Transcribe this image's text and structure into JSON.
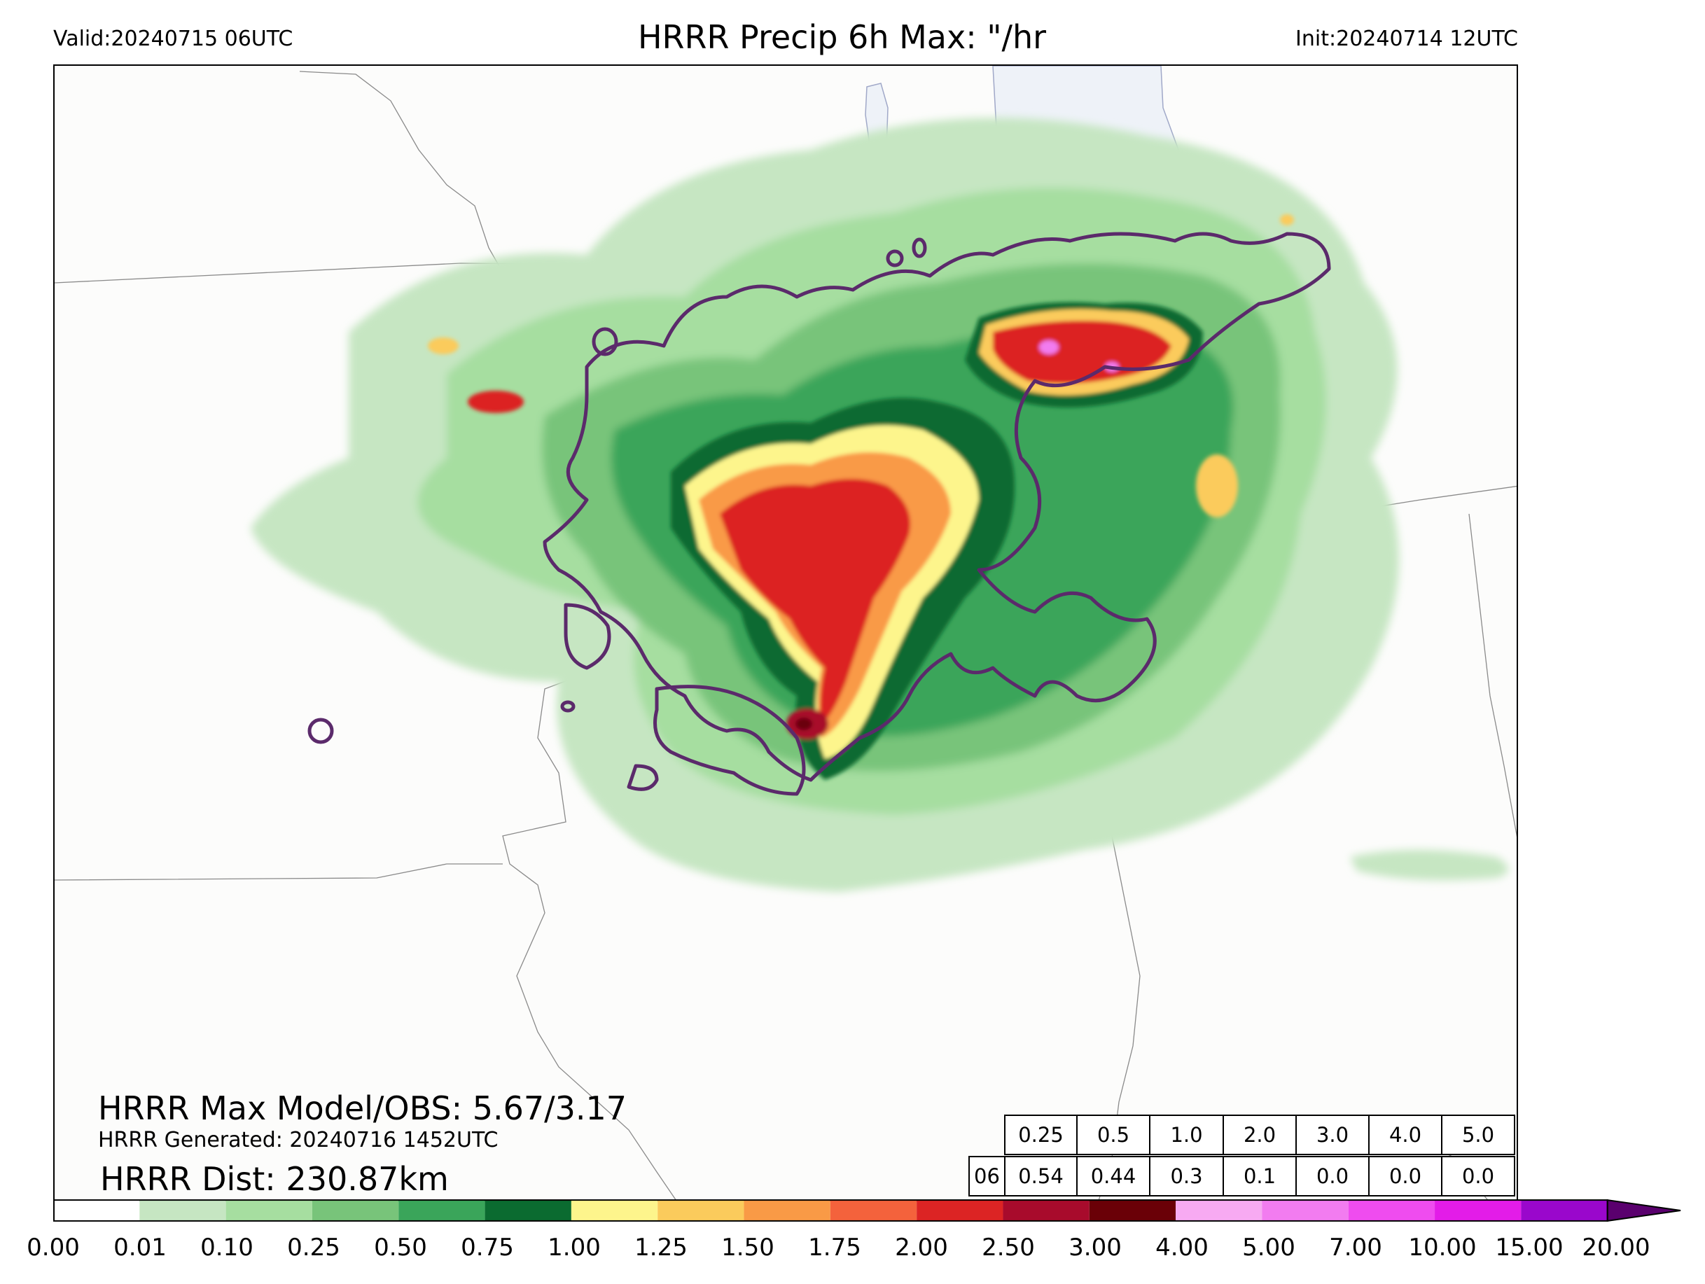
{
  "header": {
    "valid": "Valid:20240715 06UTC",
    "title": "HRRR Precip 6h Max: \"/hr",
    "init": "Init:20240714 12UTC"
  },
  "annotations": {
    "max_model_obs": "HRRR Max Model/OBS: 5.67/3.17",
    "generated": "HRRR Generated: 20240716 1452UTC",
    "distance": "HRRR Dist: 230.87km"
  },
  "stats_table": {
    "thresholds": [
      "0.25",
      "0.5",
      "1.0",
      "2.0",
      "3.0",
      "4.0",
      "5.0"
    ],
    "row_label": "06",
    "values": [
      "0.54",
      "0.44",
      "0.3",
      "0.1",
      "0.0",
      "0.0",
      "0.0"
    ]
  },
  "colorbar": {
    "ticks": [
      "0.00",
      "0.01",
      "0.10",
      "0.25",
      "0.50",
      "0.75",
      "1.00",
      "1.25",
      "1.50",
      "1.75",
      "2.00",
      "2.50",
      "3.00",
      "4.00",
      "5.00",
      "7.00",
      "10.00",
      "15.00",
      "20.00"
    ],
    "colors": [
      "#ffffff",
      "#c6e6c2",
      "#a6dea0",
      "#78c47a",
      "#3aa55a",
      "#0b6b30",
      "#fdf58c",
      "#fbcb5c",
      "#f99a46",
      "#f4623c",
      "#dc2424",
      "#a80b2c",
      "#6a0007",
      "#f7aaf2",
      "#f27cf0",
      "#ef4cef",
      "#e31ce8",
      "#9a07cc"
    ],
    "extend_color": "#5a006e"
  },
  "map": {
    "lake_color": "#eef2f8",
    "boundary_color": "#808080",
    "obs_contour_color": "#5b2a6b"
  }
}
